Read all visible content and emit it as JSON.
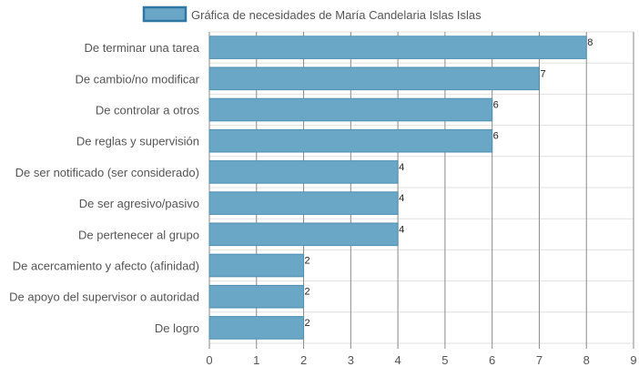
{
  "colors": {
    "bar_fill": "#6aa6c6",
    "bar_stroke": "#4f8fb1",
    "legend_fill": "#6aa6c6",
    "legend_stroke": "#2f78a6",
    "grid_major": "#8a8a8a",
    "grid_minor": "#e0e0e0",
    "label_text": "#555555",
    "value_text": "#222222"
  },
  "chart_data": {
    "type": "bar",
    "orientation": "horizontal",
    "legend_position": "top-center",
    "grid": true,
    "xlim": [
      0,
      9
    ],
    "x_ticks": [
      "0",
      "1",
      "2",
      "3",
      "4",
      "5",
      "6",
      "7",
      "8",
      "9"
    ],
    "categories": [
      "De terminar una tarea",
      "De cambio/no modificar",
      "De controlar a otros",
      "De reglas y supervisión",
      "De ser notificado (ser considerado)",
      "De ser agresivo/pasivo",
      "De pertenecer al grupo",
      "De acercamiento y afecto (afinidad)",
      "De apoyo del supervisor o autoridad",
      "De logro"
    ],
    "series": [
      {
        "name": "Gráfica de necesidades de María Candelaria Islas Islas",
        "values": [
          8,
          7,
          6,
          6,
          4,
          4,
          4,
          2,
          2,
          2
        ]
      }
    ]
  }
}
